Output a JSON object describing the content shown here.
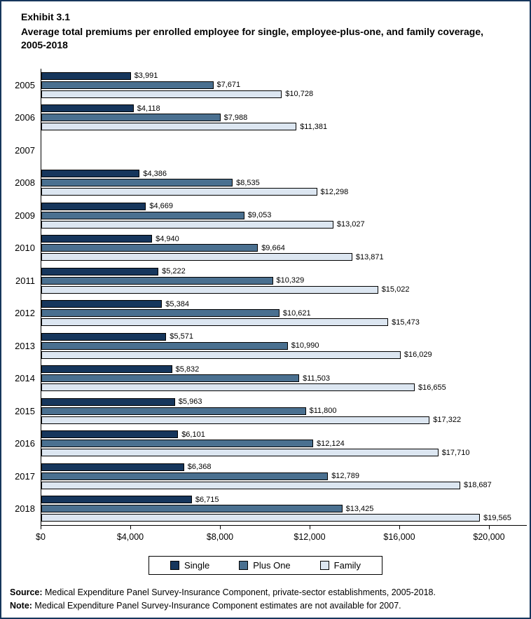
{
  "title": {
    "exhibit": "Exhibit 3.1",
    "text": "Average total premiums per enrolled employee for single, employee-plus-one, and family coverage, 2005-2018"
  },
  "chart_data": {
    "type": "bar",
    "orientation": "horizontal",
    "title": "Average total premiums per enrolled employee for single, employee-plus-one, and family coverage, 2005-2018",
    "categories": [
      "2005",
      "2006",
      "2007",
      "2008",
      "2009",
      "2010",
      "2011",
      "2012",
      "2013",
      "2014",
      "2015",
      "2016",
      "2017",
      "2018"
    ],
    "series": [
      {
        "name": "Single",
        "color": "#16365c",
        "values": [
          3991,
          4118,
          null,
          4386,
          4669,
          4940,
          5222,
          5384,
          5571,
          5832,
          5963,
          6101,
          6368,
          6715
        ]
      },
      {
        "name": "Plus One",
        "color": "#4a7090",
        "values": [
          7671,
          7988,
          null,
          8535,
          9053,
          9664,
          10329,
          10621,
          10990,
          11503,
          11800,
          12124,
          12789,
          13425
        ]
      },
      {
        "name": "Family",
        "color": "#dce6f1",
        "values": [
          10728,
          11381,
          null,
          12298,
          13027,
          13871,
          15022,
          15473,
          16029,
          16655,
          17322,
          17710,
          18687,
          19565
        ]
      }
    ],
    "xlim": [
      0,
      20000
    ],
    "x_tick_labels": [
      "$0",
      "$4,000",
      "$8,000",
      "$12,000",
      "$16,000",
      "$20,000"
    ],
    "data_labels": true,
    "grid": false,
    "legend_position": "bottom"
  },
  "footer": {
    "source_label": "Source:",
    "source_text": " Medical Expenditure Panel Survey-Insurance Component, private-sector establishments, 2005-2018.",
    "note_label": "Note:",
    "note_text": " Medical Expenditure Panel Survey-Insurance Component estimates are not available for 2007."
  }
}
